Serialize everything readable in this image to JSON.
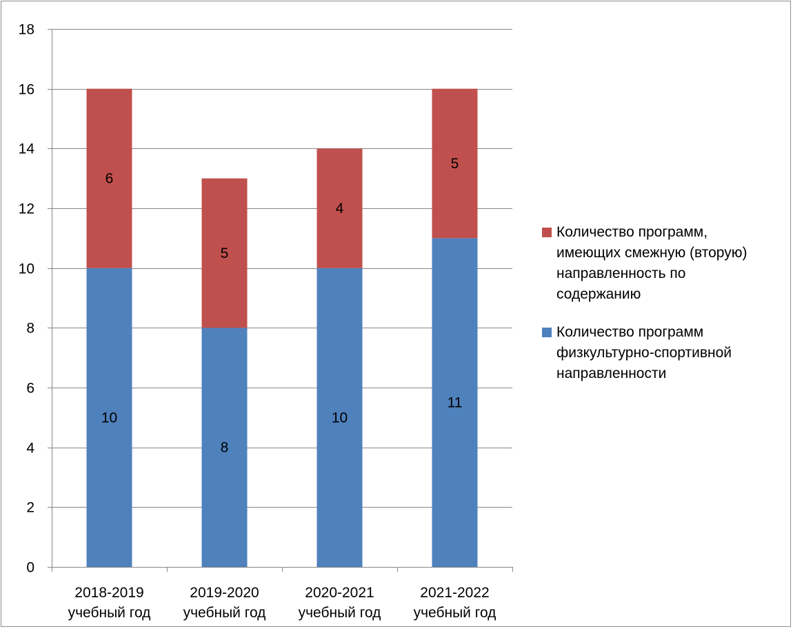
{
  "chart_data": {
    "type": "bar",
    "stacked": true,
    "categories": [
      [
        "2018-2019",
        "учебный год"
      ],
      [
        "2019-2020",
        "учебный год"
      ],
      [
        "2020-2021",
        "учебный год"
      ],
      [
        "2021-2022",
        "учебный год"
      ]
    ],
    "series": [
      {
        "name": "Количество программ физкультурно-спортивной направленности",
        "legend_lines": [
          "Количество программ",
          "физкультурно-спортивной",
          "направленности"
        ],
        "color": "#4F81BD",
        "values": [
          10,
          8,
          10,
          11
        ]
      },
      {
        "name": "Количество программ, имеющих смежную (вторую) направленность по содержанию",
        "legend_lines": [
          "Количество программ,",
          "имеющих смежную (вторую)",
          "направленность по",
          "содержанию"
        ],
        "color": "#C0504D",
        "values": [
          6,
          5,
          4,
          5
        ]
      }
    ],
    "ylim": [
      0,
      18
    ],
    "yticks": [
      0,
      2,
      4,
      6,
      8,
      10,
      12,
      14,
      16,
      18
    ],
    "grid": true,
    "legend_position": "right",
    "data_labels": true,
    "title": "",
    "xlabel": "",
    "ylabel": ""
  }
}
